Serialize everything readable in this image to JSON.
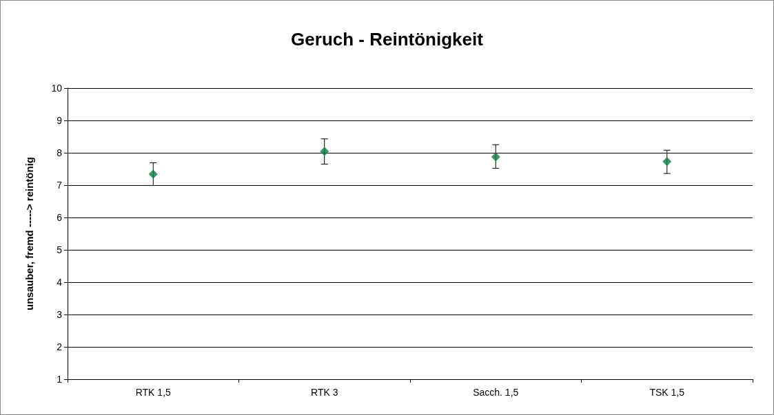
{
  "chart_data": {
    "type": "scatter",
    "title": "Geruch - Reintönigkeit",
    "ylabel": "unsauber, fremd -----> reintönig",
    "categories": [
      "RTK 1,5",
      "RTK 3",
      "Sacch. 1,5",
      "TSK 1,5"
    ],
    "series": [
      {
        "color": "#008040",
        "values": [
          7.34,
          8.04,
          7.87,
          7.73
        ],
        "errors": [
          [
            6.99,
            7.69
          ],
          [
            7.65,
            8.43
          ],
          [
            7.52,
            8.25
          ],
          [
            7.36,
            8.08
          ]
        ]
      }
    ],
    "ylim": [
      1,
      10
    ],
    "yticks": [
      1,
      2,
      3,
      4,
      5,
      6,
      7,
      8,
      9,
      10
    ],
    "grid": "y",
    "marker": "diamond"
  }
}
